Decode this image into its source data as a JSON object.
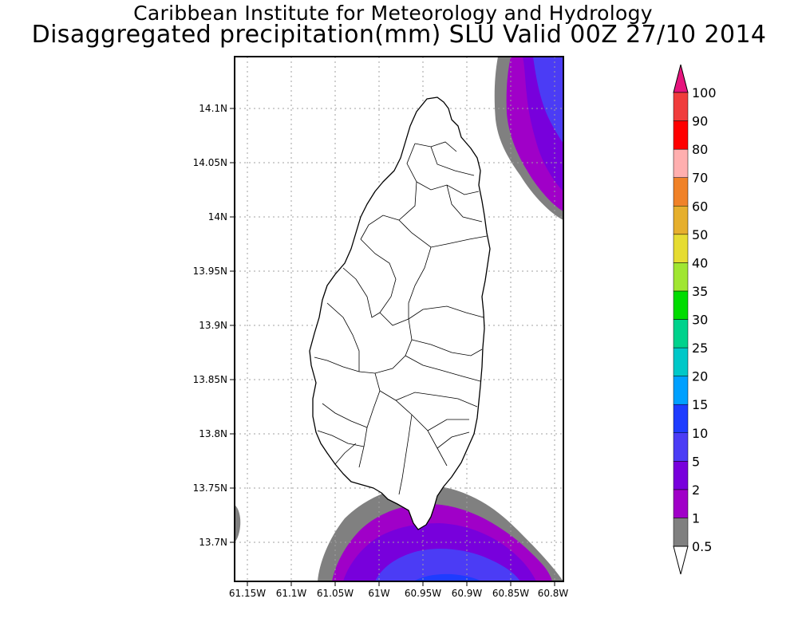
{
  "header": {
    "institution": "Caribbean Institute for Meteorology and Hydrology",
    "product": "Disaggregated precipitation(mm) SLU Valid 00Z 27/10 2014"
  },
  "map": {
    "region": "Saint Lucia",
    "lon_range": [
      -61.165,
      -60.79
    ],
    "lat_range": [
      13.665,
      14.149
    ],
    "lat_ticks": [
      {
        "value": 14.1,
        "label": "14.1N"
      },
      {
        "value": 14.05,
        "label": "14.05N"
      },
      {
        "value": 14.0,
        "label": "14N"
      },
      {
        "value": 13.95,
        "label": "13.95N"
      },
      {
        "value": 13.9,
        "label": "13.9N"
      },
      {
        "value": 13.85,
        "label": "13.85N"
      },
      {
        "value": 13.8,
        "label": "13.8N"
      },
      {
        "value": 13.75,
        "label": "13.75N"
      },
      {
        "value": 13.7,
        "label": "13.7N"
      }
    ],
    "lon_ticks": [
      {
        "value": -61.15,
        "label": "61.15W"
      },
      {
        "value": -61.1,
        "label": "61.1W"
      },
      {
        "value": -61.05,
        "label": "61.05W"
      },
      {
        "value": -61.0,
        "label": "61W"
      },
      {
        "value": -60.95,
        "label": "60.95W"
      },
      {
        "value": -60.9,
        "label": "60.9W"
      },
      {
        "value": -60.85,
        "label": "60.85W"
      },
      {
        "value": -60.8,
        "label": "60.8W"
      }
    ]
  },
  "colorbar": {
    "units": "mm",
    "levels": [
      {
        "label": "0.5",
        "color": "#ffffff"
      },
      {
        "label": "1",
        "color": "#808080"
      },
      {
        "label": "2",
        "color": "#a000c8"
      },
      {
        "label": "5",
        "color": "#7800dc"
      },
      {
        "label": "10",
        "color": "#4b3cf5"
      },
      {
        "label": "15",
        "color": "#1e3cff"
      },
      {
        "label": "20",
        "color": "#00a0ff"
      },
      {
        "label": "25",
        "color": "#00c8c8"
      },
      {
        "label": "30",
        "color": "#00d28c"
      },
      {
        "label": "35",
        "color": "#00dc00"
      },
      {
        "label": "40",
        "color": "#a0e632"
      },
      {
        "label": "50",
        "color": "#e6dc32"
      },
      {
        "label": "60",
        "color": "#e6af2d"
      },
      {
        "label": "70",
        "color": "#f08228"
      },
      {
        "label": "80",
        "color": "#ffafaf"
      },
      {
        "label": "90",
        "color": "#ff0000"
      },
      {
        "label": "100",
        "color": "#f03c3c"
      }
    ],
    "top_arrow_color": "#e6147d"
  }
}
